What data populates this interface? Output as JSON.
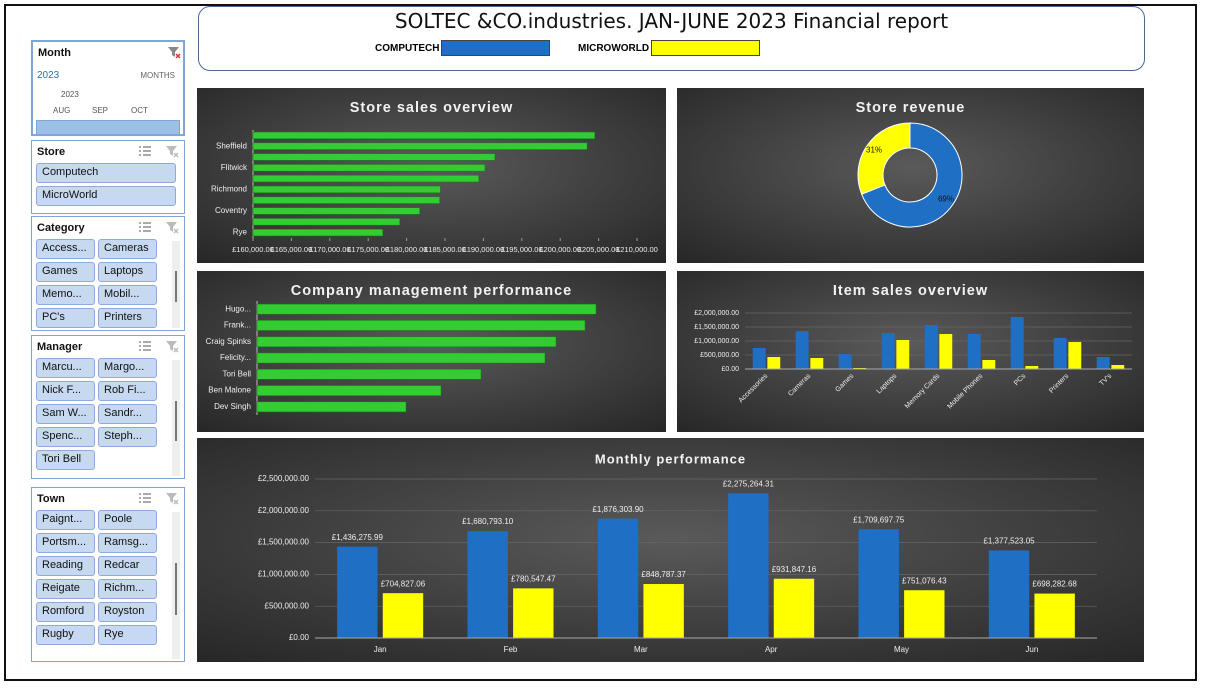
{
  "header": {
    "title": "SOLTEC &CO.industries. JAN-JUNE 2023 Financial report",
    "legend": [
      {
        "name": "COMPUTECH",
        "color": "#1f6fc5"
      },
      {
        "name": "MICROWORLD",
        "color": "#ffff00"
      }
    ]
  },
  "month_slicer": {
    "title": "Month",
    "year": "2023",
    "level": "MONTHS",
    "timeline_year": "2023",
    "months": [
      "AUG",
      "SEP",
      "OCT"
    ]
  },
  "slicers": [
    {
      "title": "Store",
      "items": [
        "Computech",
        "MicroWorld"
      ]
    },
    {
      "title": "Category",
      "items": [
        "Access...",
        "Cameras",
        "Games",
        "Laptops",
        "Memo...",
        "Mobil...",
        "PC's",
        "Printers"
      ]
    },
    {
      "title": "Manager",
      "items": [
        "Marcu...",
        "Margo...",
        "Nick F...",
        "Rob Fi...",
        "Sam W...",
        "Sandr...",
        "Spenc...",
        "Steph...",
        "Tori Bell"
      ]
    },
    {
      "title": "Town",
      "items": [
        "Paignt...",
        "Poole",
        "Portsm...",
        "Ramsg...",
        "Reading",
        "Redcar",
        "Reigate",
        "Richm...",
        "Romford",
        "Royston",
        "Rugby",
        "Rye"
      ]
    }
  ],
  "chart_data": [
    {
      "type": "barh",
      "title": "Store sales overview",
      "categories": [
        null,
        "Sheffield",
        null,
        "Flitwick",
        null,
        "Richmond",
        null,
        "Coventry",
        null,
        "Rye"
      ],
      "values": [
        204500,
        203500,
        191500,
        190200,
        189400,
        184400,
        184300,
        181700,
        179100,
        176900
      ],
      "color": "#33cc33",
      "xlim": [
        160000,
        210000
      ],
      "xticks": [
        {
          "value": 160000,
          "label": "£160,000.00"
        },
        {
          "value": 165000,
          "label": "£165,000.00"
        },
        {
          "value": 170000,
          "label": "£170,000.00"
        },
        {
          "value": 175000,
          "label": "£175,000.00"
        },
        {
          "value": 180000,
          "label": "£180,000.00"
        },
        {
          "value": 185000,
          "label": "£185,000.00"
        },
        {
          "value": 190000,
          "label": "£190,000.00"
        },
        {
          "value": 195000,
          "label": "£195,000.00"
        },
        {
          "value": 200000,
          "label": "£200,000.00"
        },
        {
          "value": 205000,
          "label": "£205,000.00"
        },
        {
          "value": 210000,
          "label": "£210,000.00"
        }
      ]
    },
    {
      "type": "doughnut",
      "title": "Store revenue",
      "values": [
        69,
        31
      ],
      "value_labels": [
        "69%",
        "31%"
      ],
      "colors": [
        "#1f6fc5",
        "#ffff00"
      ]
    },
    {
      "type": "barh",
      "title": "Company management performance",
      "categories": [
        "Hugo...",
        "Frank...",
        "Craig Spinks",
        "Felicity...",
        "Tori Bell",
        "Ben Malone",
        "Dev Singh"
      ],
      "values": [
        339,
        328,
        299,
        288,
        224,
        184,
        149
      ],
      "color": "#33cc33"
    },
    {
      "type": "bar",
      "title": "Item sales overview",
      "categories": [
        "Accessories",
        "Cameras",
        "Games",
        "Laptops",
        "Memory Cards",
        "Mobile Phones",
        "PCs",
        "Printers",
        "TV's"
      ],
      "series": [
        {
          "color": "#1f6fc5",
          "values": [
            750000,
            1357000,
            536000,
            1286000,
            1571000,
            1250000,
            1857000,
            1107000,
            429000
          ]
        },
        {
          "color": "#ffff00",
          "values": [
            429000,
            393000,
            36000,
            1036000,
            1250000,
            321000,
            107000,
            964000,
            143000
          ]
        }
      ],
      "ylim": [
        0,
        2000000
      ],
      "yticks": [
        {
          "value": 0,
          "label": "£0.00"
        },
        {
          "value": 500000,
          "label": "£500,000.00"
        },
        {
          "value": 1000000,
          "label": "£1,000,000.00"
        },
        {
          "value": 1500000,
          "label": "£1,500,000.00"
        },
        {
          "value": 2000000,
          "label": "£2,000,000.00"
        }
      ],
      "grid": true
    },
    {
      "type": "bar",
      "title": "Monthly performance",
      "categories": [
        "Jan",
        "Feb",
        "Mar",
        "Apr",
        "May",
        "Jun"
      ],
      "series": [
        {
          "color": "#1f6fc5",
          "values": [
            1436275.99,
            1680793.1,
            1876303.9,
            2275264.31,
            1709697.75,
            1377523.05
          ],
          "value_labels": [
            "£1,436,275.99",
            "£1,680,793.10",
            "£1,876,303.90",
            "£2,275,264.31",
            "£1,709,697.75",
            "£1,377,523.05"
          ]
        },
        {
          "color": "#ffff00",
          "values": [
            704827.06,
            780547.47,
            848787.37,
            931847.16,
            751076.43,
            698282.68
          ],
          "value_labels": [
            "£704,827.06",
            "£780,547.47",
            "£848,787.37",
            "£931,847.16",
            "£751,076.43",
            "£698,282.68"
          ]
        }
      ],
      "ylim": [
        0,
        2500000
      ],
      "yticks": [
        {
          "value": 0,
          "label": "£0.00"
        },
        {
          "value": 500000,
          "label": "£500,000.00"
        },
        {
          "value": 1000000,
          "label": "£1,000,000.00"
        },
        {
          "value": 1500000,
          "label": "£1,500,000.00"
        },
        {
          "value": 2000000,
          "label": "£2,000,000.00"
        },
        {
          "value": 2500000,
          "label": "£2,500,000.00"
        }
      ],
      "grid": true
    }
  ]
}
